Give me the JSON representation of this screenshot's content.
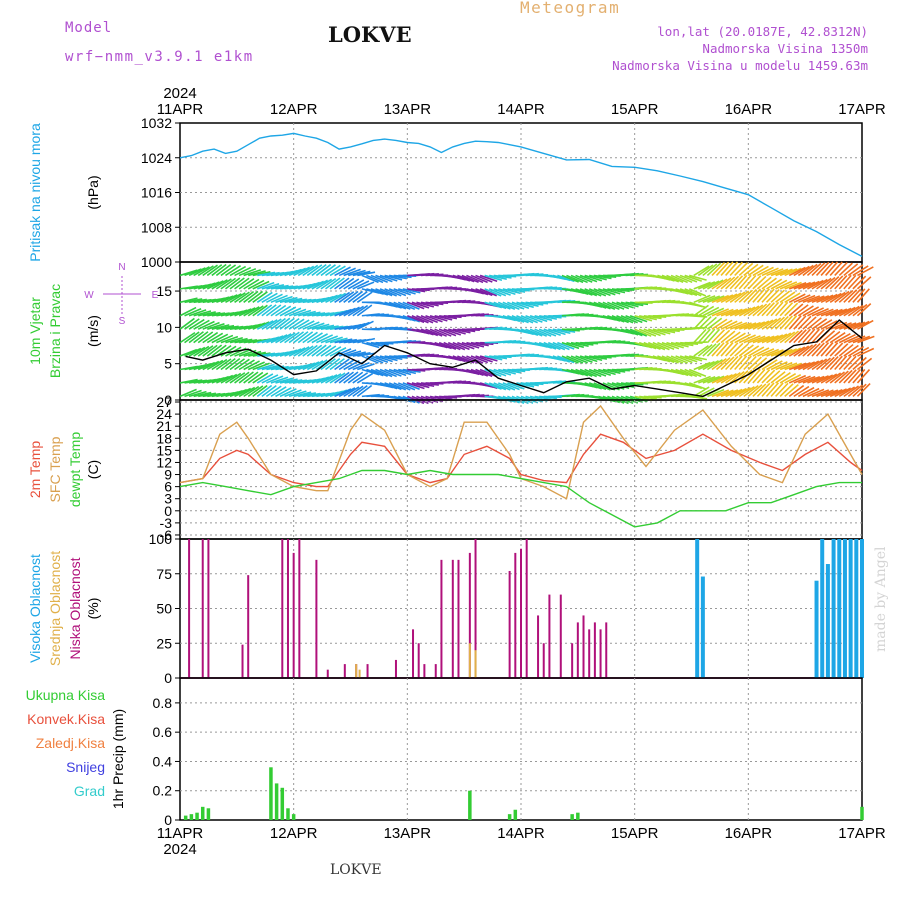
{
  "header": {
    "model_label": "Model",
    "model_name": "wrf−nmm_v3.9.1  e1km",
    "station": "LOKVE",
    "meteogram_label": "Meteogram",
    "lonlat": "lon,lat (20.0187E, 42.8312N)",
    "elevation": "Nadmorska Visina 1350m",
    "model_elevation": "Nadmorska Visina u modelu 1459.63m",
    "footer_station": "LOKVE",
    "made_by": "made by Angel"
  },
  "colors": {
    "pressure": "#1ea6e6",
    "temp2m": "#e8503c",
    "sfc": "#d9a050",
    "dewpt": "#33cc33",
    "high_cloud": "#1ea6e6",
    "mid_cloud": "#e0b04a",
    "low_cloud": "#b0107a",
    "precip": "#33cc33",
    "header_purple": "#b050d0",
    "meteogram_orange": "#e3b070"
  },
  "chart_data": {
    "type": "meteogram",
    "time_axis": {
      "year": "2024",
      "ticks": [
        "11APR",
        "12APR",
        "13APR",
        "14APR",
        "15APR",
        "16APR",
        "17APR"
      ],
      "range_days": [
        0,
        6
      ]
    },
    "panels": [
      {
        "id": "pressure",
        "type": "line",
        "ylabel": [
          "Pritisak na nivou mora",
          "(hPa)"
        ],
        "ylim": [
          1000,
          1032
        ],
        "yticks": [
          1000,
          1008,
          1016,
          1024,
          1032
        ],
        "series": [
          {
            "name": "Pritisak na nivou mora",
            "x": [
              0,
              0.1,
              0.2,
              0.3,
              0.4,
              0.5,
              0.6,
              0.7,
              0.8,
              0.9,
              1.0,
              1.1,
              1.2,
              1.3,
              1.4,
              1.5,
              1.6,
              1.7,
              1.8,
              1.9,
              2.0,
              2.1,
              2.2,
              2.3,
              2.4,
              2.5,
              2.6,
              2.7,
              2.8,
              2.9,
              3.0,
              3.2,
              3.4,
              3.6,
              3.8,
              4.0,
              4.2,
              4.4,
              4.6,
              4.8,
              5.0,
              5.2,
              5.4,
              5.6,
              5.8,
              6.0
            ],
            "y": [
              1024,
              1024.5,
              1025.5,
              1026,
              1025,
              1025.5,
              1027,
              1028.5,
              1029,
              1029.2,
              1029.6,
              1029,
              1028.5,
              1027.5,
              1026,
              1026.5,
              1027.2,
              1028,
              1028.3,
              1028,
              1027.5,
              1027.3,
              1026.5,
              1025.2,
              1026.5,
              1027.3,
              1027.8,
              1027.7,
              1027.5,
              1027,
              1026.5,
              1025,
              1023.5,
              1023.6,
              1022,
              1021.8,
              1021,
              1019.8,
              1018.5,
              1017,
              1015.5,
              1012.5,
              1009.5,
              1007,
              1004,
              1001.3
            ]
          }
        ]
      },
      {
        "id": "wind",
        "type": "line+barbs",
        "ylabel": [
          "10m Vjetar",
          "Brzina i Pravac",
          "(m/s)"
        ],
        "ylim": [
          0,
          19
        ],
        "yticks": [
          0,
          5,
          10,
          15
        ],
        "compass": [
          "N",
          "W",
          "E",
          "S"
        ],
        "series": [
          {
            "name": "Brzina",
            "x": [
              0.05,
              0.2,
              0.4,
              0.6,
              0.8,
              1.0,
              1.2,
              1.4,
              1.6,
              1.8,
              2.0,
              2.2,
              2.4,
              2.6,
              2.8,
              3.0,
              3.2,
              3.4,
              3.6,
              3.8,
              4.0,
              4.2,
              4.4,
              4.6,
              4.8,
              5.0,
              5.2,
              5.4,
              5.6,
              5.8,
              6.0
            ],
            "y": [
              6,
              5.5,
              6.5,
              7,
              5.5,
              3.5,
              4,
              6.5,
              5,
              7.5,
              6.5,
              5,
              4.5,
              5.5,
              3,
              2,
              1,
              2.5,
              3,
              1.5,
              2,
              1.5,
              1,
              0.5,
              2,
              3.5,
              5.5,
              7.5,
              8,
              11,
              8.5
            ]
          }
        ]
      },
      {
        "id": "temperature",
        "type": "line",
        "ylabel": [
          "2m Temp",
          "SFC Temp",
          "dewpt Temp",
          "(C)"
        ],
        "ylim": [
          -7,
          27.5
        ],
        "yticks": [
          -6,
          -3,
          0,
          3,
          6,
          9,
          12,
          15,
          18,
          21,
          24,
          27
        ],
        "series": [
          {
            "name": "2m Temp",
            "x": [
              0,
              0.2,
              0.35,
              0.5,
              0.6,
              0.8,
              1.0,
              1.2,
              1.3,
              1.5,
              1.6,
              1.8,
              2.0,
              2.2,
              2.35,
              2.5,
              2.7,
              2.9,
              3.0,
              3.2,
              3.4,
              3.55,
              3.7,
              3.9,
              4.1,
              4.35,
              4.6,
              4.85,
              5.1,
              5.3,
              5.5,
              5.7,
              5.9,
              6.0
            ],
            "y": [
              7,
              8,
              13,
              15,
              14,
              9,
              7,
              6,
              6,
              14,
              17,
              16,
              9,
              7,
              8,
              14,
              16,
              13,
              9,
              7.5,
              7,
              14,
              19,
              17,
              13,
              15,
              19,
              15,
              12,
              10,
              14,
              17,
              12,
              10
            ]
          },
          {
            "name": "SFC Temp",
            "x": [
              0,
              0.2,
              0.35,
              0.5,
              0.6,
              0.8,
              1.0,
              1.2,
              1.3,
              1.5,
              1.6,
              1.8,
              2.0,
              2.2,
              2.35,
              2.5,
              2.7,
              2.9,
              3.0,
              3.2,
              3.4,
              3.55,
              3.7,
              3.9,
              4.1,
              4.35,
              4.6,
              4.85,
              5.1,
              5.3,
              5.5,
              5.7,
              5.9,
              6.0
            ],
            "y": [
              7,
              8,
              19,
              22,
              18,
              9,
              6,
              5,
              5,
              20,
              24,
              20,
              9,
              6,
              8,
              22,
              22,
              14,
              8,
              6,
              3,
              22,
              26,
              18,
              11,
              20,
              25,
              16,
              9,
              7,
              19,
              24,
              14,
              9
            ]
          },
          {
            "name": "dewpt Temp",
            "x": [
              0,
              0.2,
              0.4,
              0.6,
              0.8,
              1.0,
              1.2,
              1.4,
              1.6,
              1.8,
              2.0,
              2.2,
              2.4,
              2.6,
              2.8,
              3.0,
              3.2,
              3.4,
              3.6,
              3.8,
              4.0,
              4.2,
              4.4,
              4.6,
              4.8,
              5.0,
              5.2,
              5.4,
              5.6,
              5.8,
              6.0
            ],
            "y": [
              6,
              7,
              6,
              5,
              4,
              6,
              7,
              8,
              10,
              10,
              9,
              10,
              9,
              9,
              9,
              8,
              7,
              6,
              2,
              -1,
              -4,
              -3,
              0,
              0,
              0,
              2,
              2,
              4,
              6,
              7,
              7
            ]
          }
        ]
      },
      {
        "id": "cloud",
        "type": "bar",
        "ylabel": [
          "Visoka Oblacnost",
          "Srednja Oblacnost",
          "Niska Oblacnost",
          "(%)"
        ],
        "ylim": [
          0,
          100
        ],
        "yticks": [
          0,
          25,
          50,
          75,
          100
        ],
        "series": [
          {
            "name": "Niska Oblacnost",
            "x": [
              0.08,
              0.2,
              0.25,
              0.55,
              0.6,
              0.9,
              0.95,
              1.0,
              1.05,
              1.2,
              1.3,
              1.45,
              1.55,
              1.65,
              1.9,
              2.05,
              2.1,
              2.15,
              2.25,
              2.3,
              2.4,
              2.45,
              2.55,
              2.6,
              2.9,
              2.95,
              3.0,
              3.05,
              3.15,
              3.2,
              3.25,
              3.35,
              3.45,
              3.5,
              3.55,
              3.6,
              3.65,
              3.7,
              3.75
            ],
            "y": [
              100,
              100,
              100,
              24,
              74,
              100,
              100,
              90,
              100,
              85,
              6,
              10,
              10,
              10,
              13,
              35,
              25,
              10,
              10,
              85,
              85,
              85,
              90,
              100,
              77,
              90,
              93,
              100,
              45,
              25,
              60,
              60,
              25,
              40,
              45,
              35,
              40,
              35,
              40
            ]
          },
          {
            "name": "Srednja Oblacnost",
            "x": [
              1.55,
              1.58,
              2.55,
              2.6
            ],
            "y": [
              10,
              6,
              25,
              20
            ]
          },
          {
            "name": "Visoka Oblacnost",
            "x": [
              4.55,
              4.6,
              5.6,
              5.65,
              5.7,
              5.75,
              5.8,
              5.85,
              5.9,
              5.95,
              6.0
            ],
            "y": [
              100,
              73,
              70,
              100,
              82,
              100,
              100,
              100,
              100,
              100,
              100
            ]
          }
        ]
      },
      {
        "id": "precip",
        "type": "bar",
        "ylabel": [
          "Ukupna Kisa",
          "Konvek.Kisa",
          "Zaledj.Kisa",
          "Snijeg",
          "Grad",
          "1hr Precip (mm)"
        ],
        "ylim": [
          0,
          0.97
        ],
        "yticks": [
          0,
          0.2,
          0.4,
          0.6,
          0.8
        ],
        "series": [
          {
            "name": "Ukupna Kisa",
            "x": [
              0.05,
              0.1,
              0.15,
              0.2,
              0.25,
              0.8,
              0.85,
              0.9,
              0.95,
              1.0,
              2.55,
              2.9,
              2.95,
              3.45,
              3.5,
              6.0
            ],
            "y": [
              0.03,
              0.04,
              0.05,
              0.09,
              0.08,
              0.36,
              0.25,
              0.22,
              0.08,
              0.04,
              0.2,
              0.04,
              0.07,
              0.04,
              0.05,
              0.09
            ]
          }
        ]
      }
    ]
  }
}
